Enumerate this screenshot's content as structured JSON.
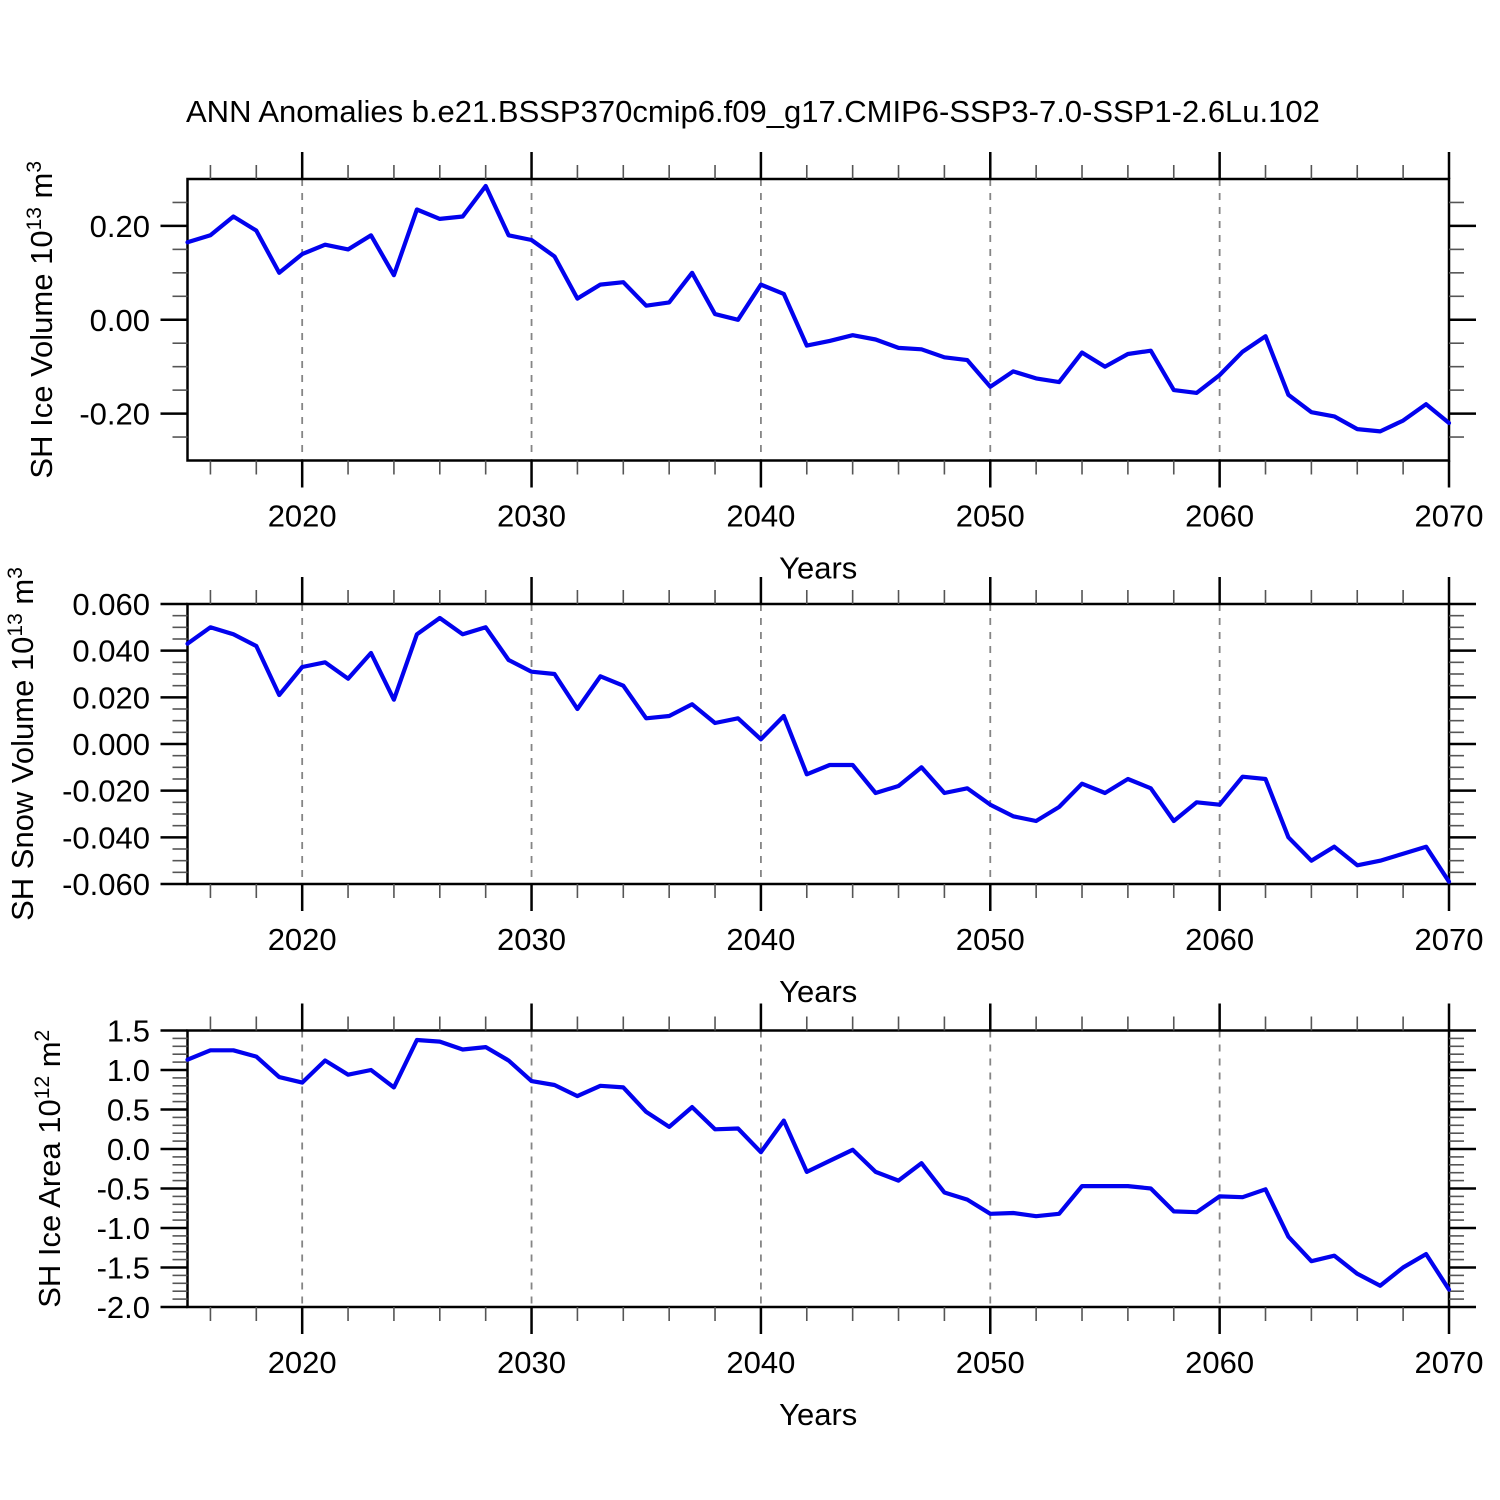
{
  "title": "ANN Anomalies b.e21.BSSP370cmip6.f09_g17.CMIP6-SSP3-7.0-SSP1-2.6Lu.102",
  "line_color": "#0202EE",
  "grid_color": "#858585",
  "axis_color": "#000000",
  "minor_tick_color": "#555555",
  "x_axis": {
    "label": "Years",
    "min": 2015,
    "max": 2070,
    "major_ticks": [
      2020,
      2030,
      2040,
      2050,
      2060,
      2070
    ],
    "major_tick_labels": [
      "2020",
      "2030",
      "2040",
      "2050",
      "2060",
      "2070"
    ],
    "minor_step": 2,
    "gridlines": [
      2020,
      2030,
      2040,
      2050,
      2060
    ],
    "years": [
      2015,
      2016,
      2017,
      2018,
      2019,
      2020,
      2021,
      2022,
      2023,
      2024,
      2025,
      2026,
      2027,
      2028,
      2029,
      2030,
      2031,
      2032,
      2033,
      2034,
      2035,
      2036,
      2037,
      2038,
      2039,
      2040,
      2041,
      2042,
      2043,
      2044,
      2045,
      2046,
      2047,
      2048,
      2049,
      2050,
      2051,
      2052,
      2053,
      2054,
      2055,
      2056,
      2057,
      2058,
      2059,
      2060,
      2061,
      2062,
      2063,
      2064,
      2065,
      2066,
      2067,
      2068,
      2069,
      2070
    ]
  },
  "chart_data": [
    {
      "type": "line",
      "name": "sh-ice-volume",
      "ylabel": "SH Ice Volume 10^13 m^3",
      "ylabel_parts": [
        {
          "t": "SH Ice Volume 10"
        },
        {
          "t": "13",
          "sup": true
        },
        {
          "t": " m"
        },
        {
          "t": "3",
          "sup": true
        }
      ],
      "ylim": [
        -0.3,
        0.3
      ],
      "y_major_step": 0.2,
      "y_minor_step": 0.05,
      "yticks": [
        {
          "label": "0.20",
          "value": 0.2
        },
        {
          "label": "0.00",
          "value": 0.0
        },
        {
          "label": "-0.20",
          "value": -0.2
        }
      ],
      "values": [
        0.165,
        0.18,
        0.22,
        0.19,
        0.1,
        0.14,
        0.16,
        0.15,
        0.18,
        0.095,
        0.235,
        0.215,
        0.22,
        0.285,
        0.18,
        0.17,
        0.135,
        0.045,
        0.075,
        0.08,
        0.03,
        0.037,
        0.1,
        0.012,
        0.0,
        0.075,
        0.055,
        -0.055,
        -0.045,
        -0.033,
        -0.042,
        -0.06,
        -0.063,
        -0.08,
        -0.086,
        -0.143,
        -0.11,
        -0.125,
        -0.133,
        -0.07,
        -0.1,
        -0.073,
        -0.066,
        -0.15,
        -0.156,
        -0.118,
        -0.068,
        -0.035,
        -0.16,
        -0.197,
        -0.206,
        -0.233,
        -0.238,
        -0.215,
        -0.18,
        -0.22
      ]
    },
    {
      "type": "line",
      "name": "sh-snow-volume",
      "ylabel": "SH Snow Volume 10^13 m^3",
      "ylabel_parts": [
        {
          "t": "SH Snow Volume 10"
        },
        {
          "t": "13",
          "sup": true
        },
        {
          "t": " m"
        },
        {
          "t": "3",
          "sup": true
        }
      ],
      "ylim": [
        -0.06,
        0.06
      ],
      "y_major_step": 0.02,
      "y_minor_step": 0.005,
      "yticks": [
        {
          "label": "0.060",
          "value": 0.06
        },
        {
          "label": "0.040",
          "value": 0.04
        },
        {
          "label": "0.020",
          "value": 0.02
        },
        {
          "label": "0.000",
          "value": 0.0
        },
        {
          "label": "-0.020",
          "value": -0.02
        },
        {
          "label": "-0.040",
          "value": -0.04
        },
        {
          "label": "-0.060",
          "value": -0.06
        }
      ],
      "values": [
        0.043,
        0.05,
        0.047,
        0.042,
        0.021,
        0.033,
        0.035,
        0.028,
        0.039,
        0.019,
        0.047,
        0.054,
        0.047,
        0.05,
        0.036,
        0.031,
        0.03,
        0.015,
        0.029,
        0.025,
        0.011,
        0.012,
        0.017,
        0.009,
        0.011,
        0.002,
        0.012,
        -0.013,
        -0.009,
        -0.009,
        -0.021,
        -0.018,
        -0.01,
        -0.021,
        -0.019,
        -0.026,
        -0.031,
        -0.033,
        -0.027,
        -0.017,
        -0.021,
        -0.015,
        -0.019,
        -0.033,
        -0.025,
        -0.026,
        -0.014,
        -0.015,
        -0.04,
        -0.05,
        -0.044,
        -0.052,
        -0.05,
        -0.047,
        -0.044,
        -0.059
      ]
    },
    {
      "type": "line",
      "name": "sh-ice-area",
      "ylabel": "SH Ice Area 10^12 m^2",
      "ylabel_parts": [
        {
          "t": "SH Ice Area 10"
        },
        {
          "t": "12",
          "sup": true
        },
        {
          "t": " m"
        },
        {
          "t": "2",
          "sup": true
        }
      ],
      "ylim": [
        -2.0,
        1.5
      ],
      "y_major_step": 0.5,
      "y_minor_step": 0.1,
      "yticks": [
        {
          "label": "1.5",
          "value": 1.5
        },
        {
          "label": "1.0",
          "value": 1.0
        },
        {
          "label": "0.5",
          "value": 0.5
        },
        {
          "label": "0.0",
          "value": 0.0
        },
        {
          "label": "-0.5",
          "value": -0.5
        },
        {
          "label": "-1.0",
          "value": -1.0
        },
        {
          "label": "-1.5",
          "value": -1.5
        },
        {
          "label": "-2.0",
          "value": -2.0
        }
      ],
      "values": [
        1.13,
        1.25,
        1.25,
        1.17,
        0.91,
        0.84,
        1.12,
        0.94,
        1.0,
        0.78,
        1.38,
        1.36,
        1.26,
        1.29,
        1.12,
        0.86,
        0.81,
        0.67,
        0.8,
        0.78,
        0.47,
        0.28,
        0.53,
        0.25,
        0.26,
        -0.04,
        0.36,
        -0.29,
        -0.15,
        -0.01,
        -0.29,
        -0.4,
        -0.18,
        -0.55,
        -0.64,
        -0.82,
        -0.81,
        -0.85,
        -0.82,
        -0.47,
        -0.47,
        -0.47,
        -0.5,
        -0.79,
        -0.8,
        -0.6,
        -0.61,
        -0.51,
        -1.11,
        -1.42,
        -1.35,
        -1.58,
        -1.73,
        -1.5,
        -1.33,
        -1.78
      ]
    }
  ]
}
